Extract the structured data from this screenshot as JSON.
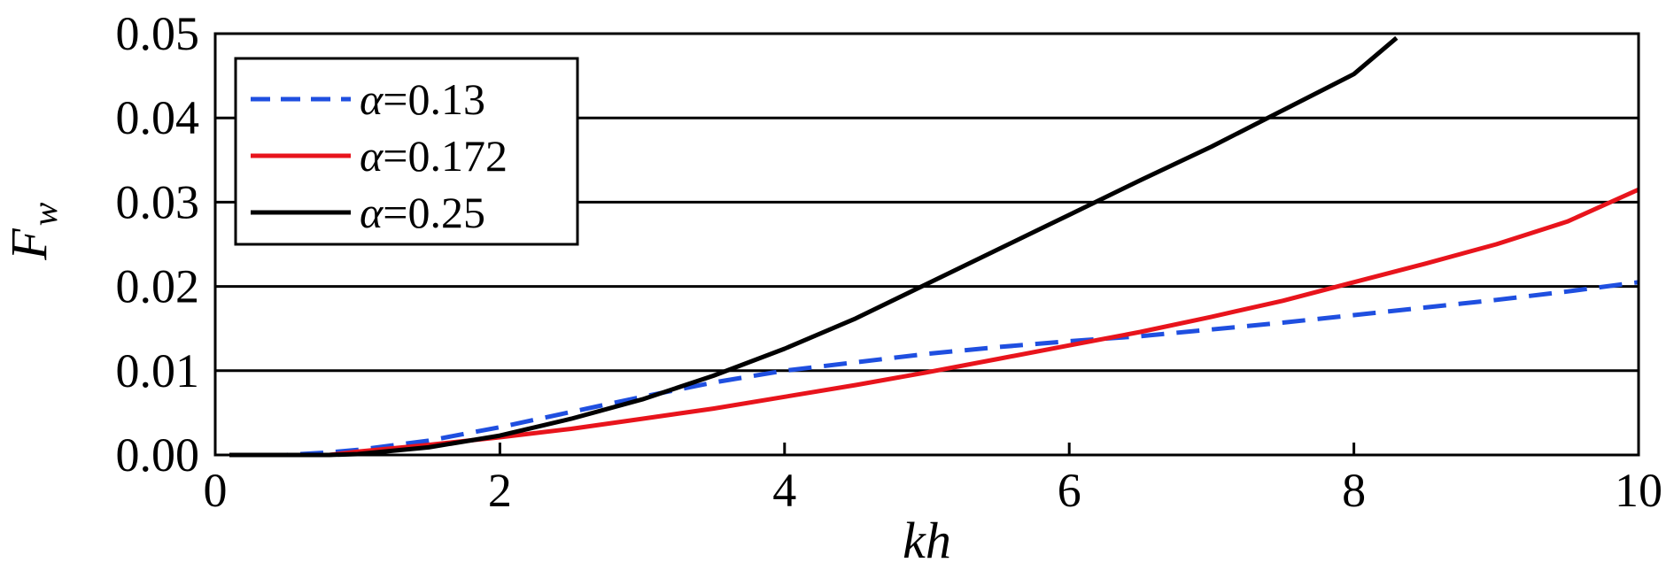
{
  "chart_data": {
    "type": "line",
    "xlabel": "kh",
    "ylabel": "F",
    "ylabel_sub": "w",
    "xlim": [
      0,
      10
    ],
    "ylim": [
      0,
      0.05
    ],
    "x_ticks": [
      "0",
      "2",
      "4",
      "6",
      "8",
      "10"
    ],
    "y_ticks": [
      "0.00",
      "0.01",
      "0.02",
      "0.03",
      "0.04",
      "0.05"
    ],
    "grid": "horizontal",
    "legend_position": "top-left",
    "legend_symbol": "α",
    "series": [
      {
        "name": "=0.13",
        "color": "#1f4fe0",
        "style": "dashed",
        "x": [
          0.1,
          0.5,
          0.8,
          1.0,
          1.5,
          2.0,
          2.5,
          3.0,
          3.5,
          4.0,
          4.5,
          5.0,
          5.5,
          6.0,
          6.5,
          7.0,
          7.5,
          8.0,
          8.5,
          9.0,
          9.5,
          10.0
        ],
        "y": [
          0.0,
          0.0,
          0.0003,
          0.0006,
          0.0017,
          0.0033,
          0.0051,
          0.0069,
          0.0086,
          0.01,
          0.011,
          0.012,
          0.0128,
          0.0135,
          0.0141,
          0.0149,
          0.0157,
          0.0166,
          0.0175,
          0.0184,
          0.0194,
          0.0205
        ]
      },
      {
        "name": "=0.172",
        "color": "#e8141c",
        "style": "solid",
        "x": [
          0.1,
          0.8,
          1.0,
          1.5,
          2.0,
          2.5,
          3.0,
          3.5,
          4.0,
          4.5,
          5.0,
          5.5,
          6.0,
          6.5,
          7.0,
          7.5,
          8.0,
          8.5,
          9.0,
          9.5,
          10.0
        ],
        "y": [
          0.0,
          0.0,
          0.0004,
          0.0012,
          0.0021,
          0.0031,
          0.0043,
          0.0055,
          0.0069,
          0.0083,
          0.0098,
          0.0114,
          0.013,
          0.0146,
          0.0164,
          0.0183,
          0.0205,
          0.0227,
          0.025,
          0.0277,
          0.0315
        ]
      },
      {
        "name": "=0.25",
        "color": "#000000",
        "style": "solid",
        "x": [
          0.1,
          0.8,
          1.0,
          1.5,
          2.0,
          2.5,
          3.0,
          3.5,
          4.0,
          4.5,
          5.0,
          5.5,
          6.0,
          6.5,
          7.0,
          7.5,
          8.0,
          8.3
        ],
        "y": [
          0.0,
          0.0,
          0.0001,
          0.0009,
          0.0023,
          0.0043,
          0.0066,
          0.0094,
          0.0126,
          0.0162,
          0.0203,
          0.0244,
          0.0285,
          0.0326,
          0.0366,
          0.0409,
          0.0452,
          0.0495
        ]
      }
    ]
  }
}
